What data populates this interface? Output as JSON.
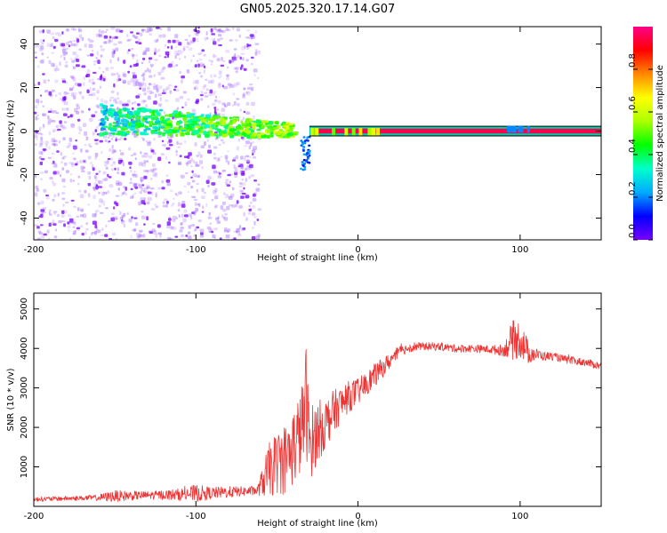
{
  "title": "GN05.2025.320.17.14.G07",
  "chart_data": [
    {
      "type": "heatmap",
      "title": "GN05.2025.320.17.14.G07",
      "xlabel": "Height of straight line (km)",
      "ylabel": "Frequency (Hz)",
      "xlim": [
        -200,
        150
      ],
      "ylim": [
        -50,
        48
      ],
      "xticks": [
        -200,
        -100,
        0,
        100
      ],
      "yticks": [
        -40,
        -20,
        0,
        20,
        40
      ],
      "colorbar": {
        "label": "Normalized spectral amplitude",
        "range": [
          0,
          1
        ],
        "ticks": [
          0.0,
          0.2,
          0.4,
          0.6,
          0.8
        ],
        "colormap": [
          "#7700ff",
          "#0000ff",
          "#00aaff",
          "#00ffcc",
          "#00ff00",
          "#aaff00",
          "#ffff00",
          "#ff8800",
          "#ff0000",
          "#ff0088"
        ]
      },
      "features": [
        {
          "name": "scattered low-amplitude noise",
          "x_range": [
            -200,
            -62
          ],
          "freq_range": [
            -50,
            48
          ],
          "amplitude": 0.1
        },
        {
          "name": "broad signal band",
          "x_range": [
            -160,
            -40
          ],
          "freq_range": [
            -5,
            12
          ],
          "amplitude": 0.35
        },
        {
          "name": "steady carrier line",
          "x_range": [
            -30,
            150
          ],
          "freq_range": [
            -1,
            1
          ],
          "amplitude": 0.95
        },
        {
          "name": "side blob",
          "x_range": [
            90,
            105
          ],
          "freq_range": [
            -2,
            2
          ],
          "amplitude": 0.2
        }
      ]
    },
    {
      "type": "line",
      "xlabel": "Height of straight line (km)",
      "ylabel": "SNR (10 * v/v)",
      "xlim": [
        -200,
        150
      ],
      "ylim": [
        0,
        5400
      ],
      "xticks": [
        -200,
        -100,
        0,
        100
      ],
      "yticks": [
        1000,
        2000,
        3000,
        4000,
        5000
      ],
      "color": "#ee3333",
      "series": [
        {
          "name": "SNR",
          "x": [
            -200,
            -190,
            -180,
            -170,
            -160,
            -150,
            -140,
            -130,
            -120,
            -110,
            -100,
            -90,
            -80,
            -70,
            -62,
            -55,
            -50,
            -45,
            -40,
            -35,
            -32,
            -30,
            -28,
            -25,
            -20,
            -15,
            -10,
            -5,
            0,
            5,
            10,
            15,
            20,
            25,
            30,
            35,
            40,
            50,
            60,
            70,
            80,
            90,
            95,
            100,
            105,
            110,
            115,
            120,
            130,
            140,
            150
          ],
          "values": [
            180,
            190,
            200,
            210,
            220,
            260,
            270,
            280,
            290,
            300,
            330,
            340,
            360,
            380,
            400,
            900,
            1100,
            1200,
            1500,
            1900,
            2700,
            1600,
            1700,
            1900,
            2100,
            2400,
            2600,
            2800,
            2900,
            3100,
            3300,
            3500,
            3700,
            3900,
            4000,
            4050,
            4050,
            4050,
            4000,
            4000,
            3980,
            3950,
            4200,
            4250,
            3900,
            3850,
            3800,
            3800,
            3700,
            3650,
            3550
          ],
          "noise": [
            60,
            60,
            60,
            60,
            80,
            150,
            120,
            100,
            120,
            150,
            220,
            150,
            150,
            120,
            120,
            700,
            800,
            900,
            1000,
            1100,
            1400,
            1000,
            900,
            800,
            650,
            550,
            450,
            400,
            350,
            300,
            300,
            250,
            200,
            150,
            120,
            120,
            100,
            100,
            100,
            100,
            100,
            150,
            500,
            500,
            300,
            150,
            120,
            100,
            100,
            100,
            100
          ]
        }
      ]
    }
  ]
}
